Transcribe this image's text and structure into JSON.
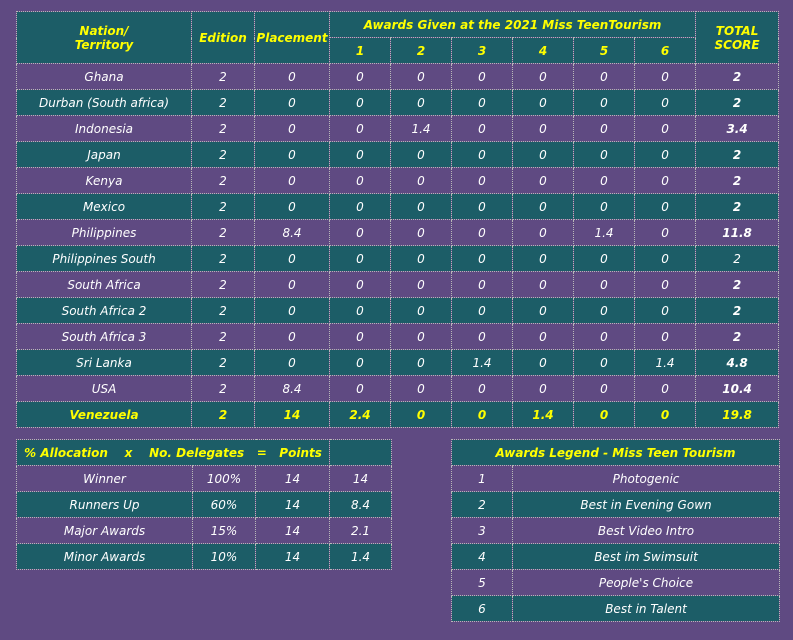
{
  "main_table": {
    "headers": {
      "nation_line1": "Nation/",
      "nation_line2": "Territory",
      "edition": "Edition",
      "placement": "Placement",
      "awards_group": "Awards Given at the 2021 Miss TeenTourism",
      "award_cols": [
        "1",
        "2",
        "3",
        "4",
        "5",
        "6"
      ],
      "total_line1": "TOTAL",
      "total_line2": "SCORE"
    },
    "rows": [
      {
        "nation": "Ghana",
        "edition": "2",
        "placement": "0",
        "a1": "0",
        "a2": "0",
        "a3": "0",
        "a4": "0",
        "a5": "0",
        "a6": "0",
        "total": "2"
      },
      {
        "nation": "Durban (South africa)",
        "edition": "2",
        "placement": "0",
        "a1": "0",
        "a2": "0",
        "a3": "0",
        "a4": "0",
        "a5": "0",
        "a6": "0",
        "total": "2"
      },
      {
        "nation": "Indonesia",
        "edition": "2",
        "placement": "0",
        "a1": "0",
        "a2": "1.4",
        "a3": "0",
        "a4": "0",
        "a5": "0",
        "a6": "0",
        "total": "3.4"
      },
      {
        "nation": "Japan",
        "edition": "2",
        "placement": "0",
        "a1": "0",
        "a2": "0",
        "a3": "0",
        "a4": "0",
        "a5": "0",
        "a6": "0",
        "total": "2"
      },
      {
        "nation": "Kenya",
        "edition": "2",
        "placement": "0",
        "a1": "0",
        "a2": "0",
        "a3": "0",
        "a4": "0",
        "a5": "0",
        "a6": "0",
        "total": "2"
      },
      {
        "nation": "Mexico",
        "edition": "2",
        "placement": "0",
        "a1": "0",
        "a2": "0",
        "a3": "0",
        "a4": "0",
        "a5": "0",
        "a6": "0",
        "total": "2"
      },
      {
        "nation": "Philippines",
        "edition": "2",
        "placement": "8.4",
        "a1": "0",
        "a2": "0",
        "a3": "0",
        "a4": "0",
        "a5": "1.4",
        "a6": "0",
        "total": "11.8"
      },
      {
        "nation": "Philippines South",
        "edition": "2",
        "placement": "0",
        "a1": "0",
        "a2": "0",
        "a3": "0",
        "a4": "0",
        "a5": "0",
        "a6": "0",
        "total": "2"
      },
      {
        "nation": "South Africa",
        "edition": "2",
        "placement": "0",
        "a1": "0",
        "a2": "0",
        "a3": "0",
        "a4": "0",
        "a5": "0",
        "a6": "0",
        "total": "2"
      },
      {
        "nation": "South Africa 2",
        "edition": "2",
        "placement": "0",
        "a1": "0",
        "a2": "0",
        "a3": "0",
        "a4": "0",
        "a5": "0",
        "a6": "0",
        "total": "2"
      },
      {
        "nation": "South Africa 3",
        "edition": "2",
        "placement": "0",
        "a1": "0",
        "a2": "0",
        "a3": "0",
        "a4": "0",
        "a5": "0",
        "a6": "0",
        "total": "2"
      },
      {
        "nation": "Sri Lanka",
        "edition": "2",
        "placement": "0",
        "a1": "0",
        "a2": "0",
        "a3": "1.4",
        "a4": "0",
        "a5": "0",
        "a6": "1.4",
        "total": "4.8"
      },
      {
        "nation": "USA",
        "edition": "2",
        "placement": "8.4",
        "a1": "0",
        "a2": "0",
        "a3": "0",
        "a4": "0",
        "a5": "0",
        "a6": "0",
        "total": "10.4"
      },
      {
        "nation": "Venezuela",
        "edition": "2",
        "placement": "14",
        "a1": "2.4",
        "a2": "0",
        "a3": "0",
        "a4": "1.4",
        "a5": "0",
        "a6": "0",
        "total": "19.8"
      }
    ]
  },
  "allocation_table": {
    "header": "% Allocation    x    No. Delegates   =   Points",
    "rows": [
      {
        "label": "Winner",
        "pct": "100%",
        "delegates": "14",
        "points": "14"
      },
      {
        "label": "Runners Up",
        "pct": "60%",
        "delegates": "14",
        "points": "8.4"
      },
      {
        "label": "Major Awards",
        "pct": "15%",
        "delegates": "14",
        "points": "2.1"
      },
      {
        "label": "Minor Awards",
        "pct": "10%",
        "delegates": "14",
        "points": "1.4"
      }
    ]
  },
  "legend_table": {
    "header": "Awards Legend - Miss Teen Tourism",
    "rows": [
      {
        "num": "1",
        "award": "Photogenic"
      },
      {
        "num": "2",
        "award": "Best in Evening Gown"
      },
      {
        "num": "3",
        "award": "Best Video Intro"
      },
      {
        "num": "4",
        "award": "Best im Swimsuit"
      },
      {
        "num": "5",
        "award": "People's Choice"
      },
      {
        "num": "6",
        "award": "Best in Talent"
      }
    ]
  },
  "colors": {
    "background": "#5f4a82",
    "teal": "#1c5d67",
    "header_text": "#ffff00",
    "text": "#ffffff"
  }
}
